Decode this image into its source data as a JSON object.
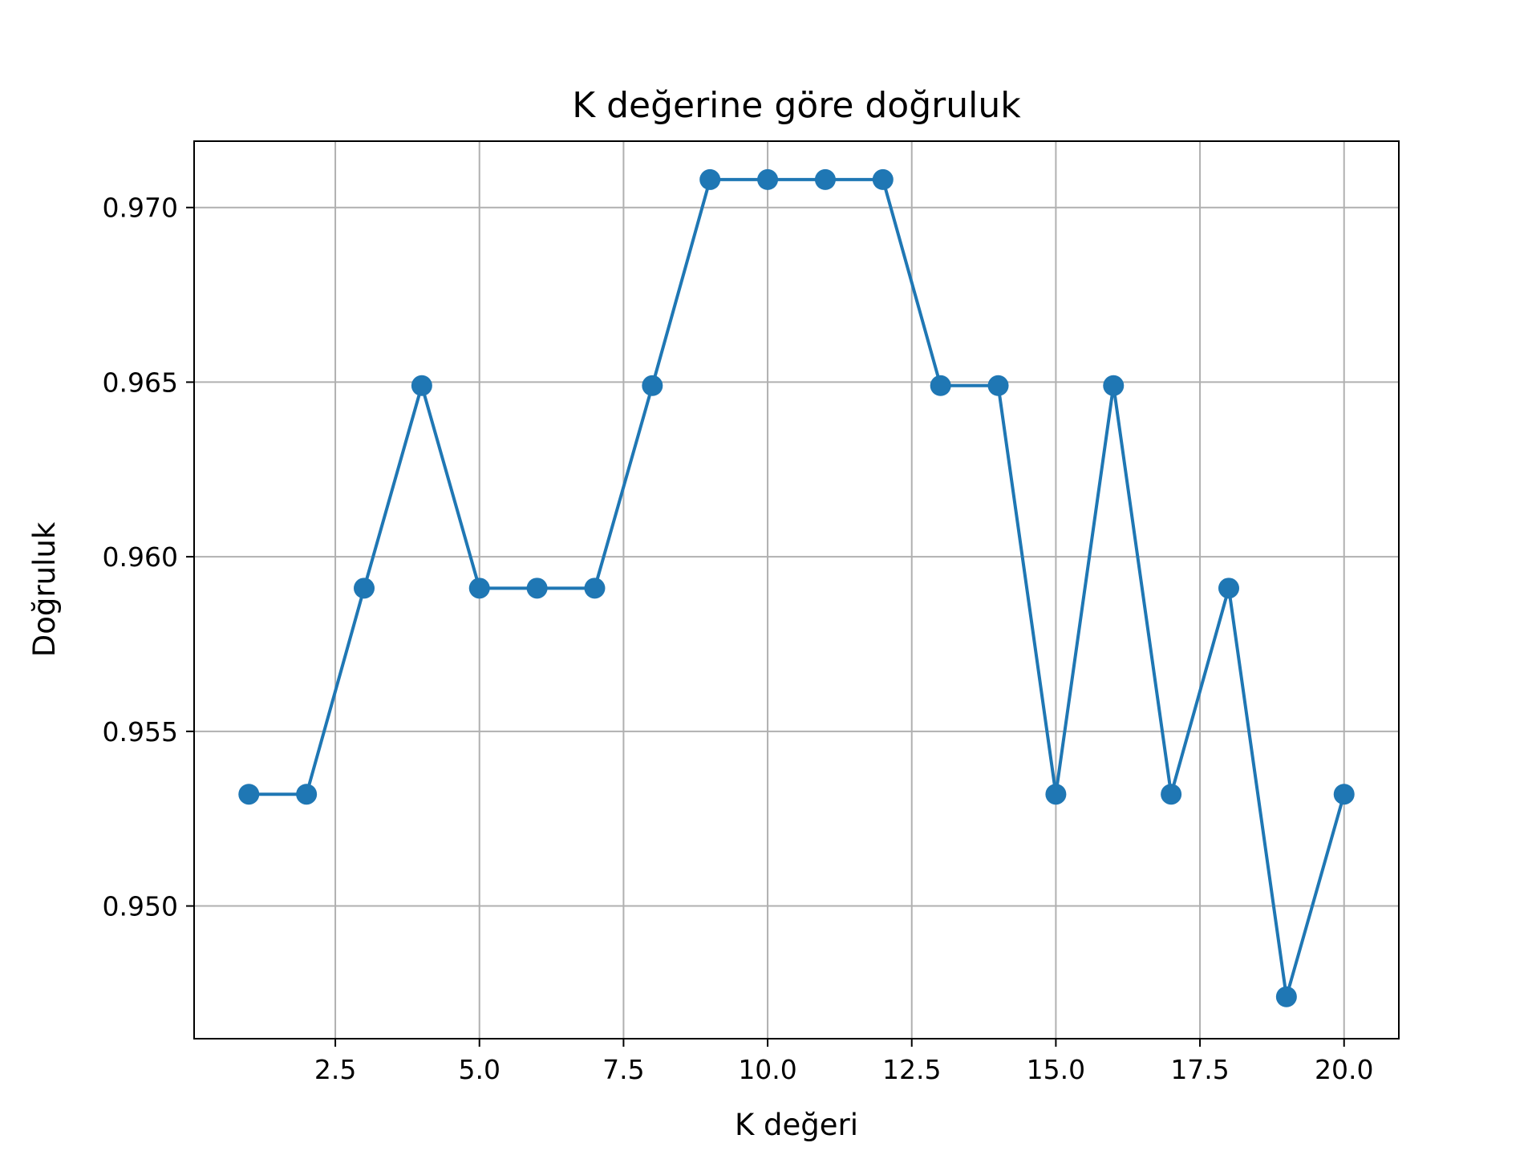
{
  "chart_data": {
    "type": "line",
    "title": "K değerine göre doğruluk",
    "xlabel": "K değeri",
    "ylabel": "Doğruluk",
    "x": [
      1,
      2,
      3,
      4,
      5,
      6,
      7,
      8,
      9,
      10,
      11,
      12,
      13,
      14,
      15,
      16,
      17,
      18,
      19,
      20
    ],
    "series": [
      {
        "values": [
          0.9532,
          0.9532,
          0.9591,
          0.9649,
          0.9591,
          0.9591,
          0.9591,
          0.9649,
          0.9708,
          0.9708,
          0.9708,
          0.9708,
          0.9649,
          0.9649,
          0.9532,
          0.9649,
          0.9532,
          0.9591,
          0.9474,
          0.9532
        ],
        "color": "#1f77b4",
        "marker": "circle"
      }
    ],
    "xlim": [
      0.05,
      20.95
    ],
    "ylim": [
      0.9462,
      0.9719
    ],
    "xticks": [
      2.5,
      5.0,
      7.5,
      10.0,
      12.5,
      15.0,
      17.5,
      20.0
    ],
    "xtick_labels": [
      "2.5",
      "5.0",
      "7.5",
      "10.0",
      "12.5",
      "15.0",
      "17.5",
      "20.0"
    ],
    "yticks": [
      0.95,
      0.955,
      0.96,
      0.965,
      0.97
    ],
    "ytick_labels": [
      "0.950",
      "0.955",
      "0.960",
      "0.965",
      "0.970"
    ],
    "grid": true,
    "colors": {
      "line": "#1f77b4",
      "grid": "#b0b0b0",
      "axes": "#000000"
    }
  }
}
